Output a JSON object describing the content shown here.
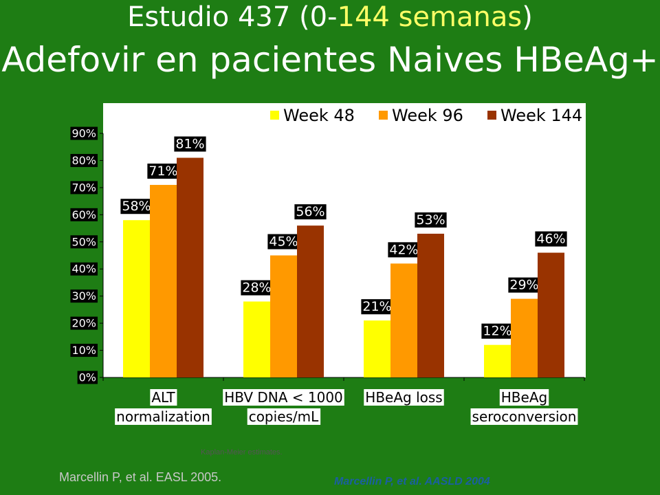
{
  "slide": {
    "title_prefix": "Estudio 437 (0-",
    "title_highlight": "144 semanas",
    "title_suffix": ")",
    "subtitle": "Adefovir en pacientes Naives HBeAg+",
    "note": "Kaplan-Meier estimates.",
    "citation_1": "Marcellin P, et al. EASL 2005.",
    "citation_2": "Marcellin P, et al. AASLD 2004"
  },
  "colors": {
    "background": "#1e7d14",
    "plot_background": "#ffffff",
    "week48": "#ffff00",
    "week96": "#ff9900",
    "week144": "#993300",
    "label_bg": "#000000",
    "label_text": "#ffffff"
  },
  "chart_data": {
    "type": "bar",
    "categories": [
      [
        "ALT",
        "normalization"
      ],
      [
        "HBV DNA < 1000",
        "copies/mL"
      ],
      [
        "HBeAg loss"
      ],
      [
        "HBeAg",
        "seroconversion"
      ]
    ],
    "series": [
      {
        "name": "Week 48",
        "values": [
          58,
          28,
          21,
          12
        ],
        "labels": [
          "58%",
          "28%",
          "21%",
          "12%"
        ]
      },
      {
        "name": "Week 96",
        "values": [
          71,
          45,
          42,
          29
        ],
        "labels": [
          "71%",
          "45%",
          "42%",
          "29%"
        ]
      },
      {
        "name": "Week 144",
        "values": [
          81,
          56,
          53,
          46
        ],
        "labels": [
          "81%",
          "56%",
          "53%",
          "46%"
        ]
      }
    ],
    "ylim": [
      0,
      90
    ],
    "yticks": [
      0,
      10,
      20,
      30,
      40,
      50,
      60,
      70,
      80,
      90
    ],
    "ytick_labels": [
      "0%",
      "10%",
      "20%",
      "30%",
      "40%",
      "50%",
      "60%",
      "70%",
      "80%",
      "90%"
    ],
    "legend_position": "top-right",
    "grid": false
  }
}
